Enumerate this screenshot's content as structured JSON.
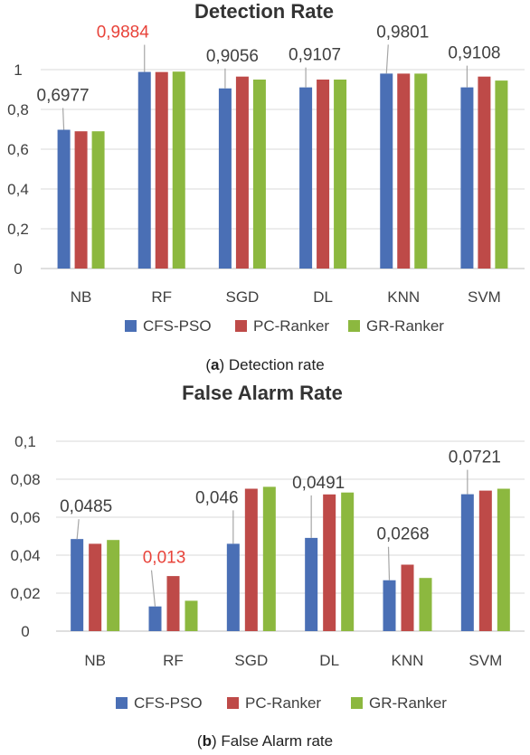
{
  "colors": {
    "CFS-PSO": "#4a6fb5",
    "PC-Ranker": "#be4a48",
    "GR-Ranker": "#8cb83f",
    "highlight": "#e8433a"
  },
  "chart_data": [
    {
      "type": "bar",
      "title": "Detection Rate",
      "categories": [
        "NB",
        "RF",
        "SGD",
        "DL",
        "KNN",
        "SVM"
      ],
      "series": [
        {
          "name": "CFS-PSO",
          "values": [
            0.6977,
            0.9884,
            0.9056,
            0.9107,
            0.9801,
            0.9108
          ]
        },
        {
          "name": "PC-Ranker",
          "values": [
            0.69,
            0.988,
            0.965,
            0.95,
            0.98,
            0.965
          ]
        },
        {
          "name": "GR-Ranker",
          "values": [
            0.69,
            0.99,
            0.95,
            0.95,
            0.98,
            0.945
          ]
        }
      ],
      "data_labels": [
        "0,6977",
        "0,9884",
        "0,9056",
        "0,9107",
        "0,9801",
        "0,9108"
      ],
      "highlight_label_index": 1,
      "ylim": [
        0,
        1
      ],
      "yticks": [
        "0",
        "0,2",
        "0,4",
        "0,6",
        "0,8",
        "1"
      ],
      "grid": true,
      "legend": "bottom"
    },
    {
      "type": "bar",
      "title": "False Alarm Rate",
      "categories": [
        "NB",
        "RF",
        "SGD",
        "DL",
        "KNN",
        "SVM"
      ],
      "series": [
        {
          "name": "CFS-PSO",
          "values": [
            0.0485,
            0.013,
            0.046,
            0.0491,
            0.0268,
            0.0721
          ]
        },
        {
          "name": "PC-Ranker",
          "values": [
            0.046,
            0.029,
            0.075,
            0.072,
            0.035,
            0.074
          ]
        },
        {
          "name": "GR-Ranker",
          "values": [
            0.048,
            0.016,
            0.076,
            0.073,
            0.028,
            0.075
          ]
        }
      ],
      "data_labels": [
        "0,0485",
        "0,013",
        "0,046",
        "0,0491",
        "0,0268",
        "0,0721"
      ],
      "highlight_label_index": 1,
      "ylim": [
        0,
        0.1
      ],
      "yticks": [
        "0",
        "0,02",
        "0,04",
        "0,06",
        "0,08",
        "0,1"
      ],
      "grid": true,
      "legend": "bottom"
    }
  ],
  "captions": [
    {
      "letter": "a",
      "text": "Detection rate"
    },
    {
      "letter": "b",
      "text": "False Alarm rate"
    }
  ]
}
